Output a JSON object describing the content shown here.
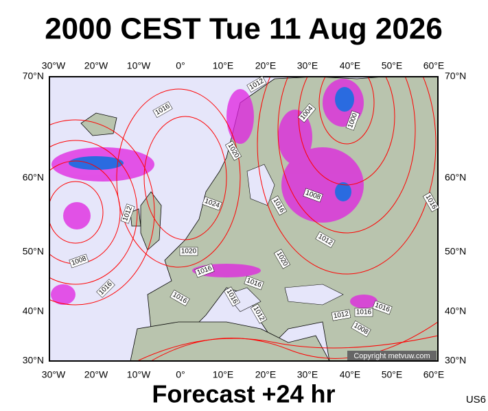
{
  "header": {
    "title": "2000 CEST Tue 11 Aug 2026"
  },
  "map": {
    "lon_labels": [
      "30°W",
      "20°W",
      "10°W",
      "0°",
      "10°E",
      "20°E",
      "30°E",
      "40°E",
      "50°E",
      "60°E"
    ],
    "lat_labels": [
      "70°N",
      "60°N",
      "50°N",
      "40°N",
      "30°N"
    ],
    "isobar_labels": [
      "1012",
      "1016",
      "1004",
      "1000",
      "1020",
      "1024",
      "1008",
      "1016",
      "1012",
      "1016",
      "1012",
      "1020",
      "1008",
      "1020",
      "1016",
      "1016",
      "1016",
      "1016",
      "1016",
      "1012",
      "1016",
      "1012",
      "1016",
      "1008"
    ],
    "copyright": "Copyright metvuw.com"
  },
  "footer": {
    "forecast": "Forecast +24 hr",
    "model": "US6"
  }
}
